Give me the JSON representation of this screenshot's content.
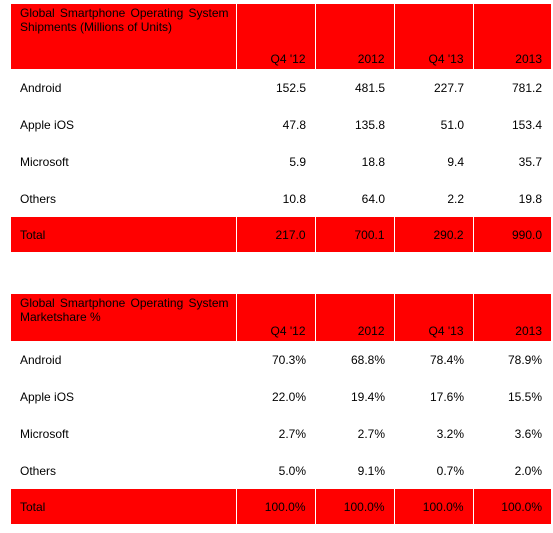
{
  "colors": {
    "header_background": "#ff0000",
    "body_background": "#ffffff",
    "text": "#000000"
  },
  "shipments": {
    "title": "Global Smartphone Operating System Shipments (Millions of Units)",
    "columns": [
      "Q4 '12",
      "2012",
      "Q4 '13",
      "2013"
    ],
    "rows": [
      {
        "label": "Android",
        "values": [
          "152.5",
          "481.5",
          "227.7",
          "781.2"
        ]
      },
      {
        "label": "Apple iOS",
        "values": [
          "47.8",
          "135.8",
          "51.0",
          "153.4"
        ]
      },
      {
        "label": "Microsoft",
        "values": [
          "5.9",
          "18.8",
          "9.4",
          "35.7"
        ]
      },
      {
        "label": "Others",
        "values": [
          "10.8",
          "64.0",
          "2.2",
          "19.8"
        ]
      }
    ],
    "total": {
      "label": "Total",
      "values": [
        "217.0",
        "700.1",
        "290.2",
        "990.0"
      ]
    }
  },
  "marketshare": {
    "title": "Global Smartphone Operating System Marketshare %",
    "columns": [
      "Q4 '12",
      "2012",
      "Q4 '13",
      "2013"
    ],
    "rows": [
      {
        "label": "Android",
        "values": [
          "70.3%",
          "68.8%",
          "78.4%",
          "78.9%"
        ]
      },
      {
        "label": "Apple iOS",
        "values": [
          "22.0%",
          "19.4%",
          "17.6%",
          "15.5%"
        ]
      },
      {
        "label": "Microsoft",
        "values": [
          "2.7%",
          "2.7%",
          "3.2%",
          "3.6%"
        ]
      },
      {
        "label": "Others",
        "values": [
          "5.0%",
          "9.1%",
          "0.7%",
          "2.0%"
        ]
      }
    ],
    "total": {
      "label": "Total",
      "values": [
        "100.0%",
        "100.0%",
        "100.0%",
        "100.0%"
      ]
    }
  }
}
